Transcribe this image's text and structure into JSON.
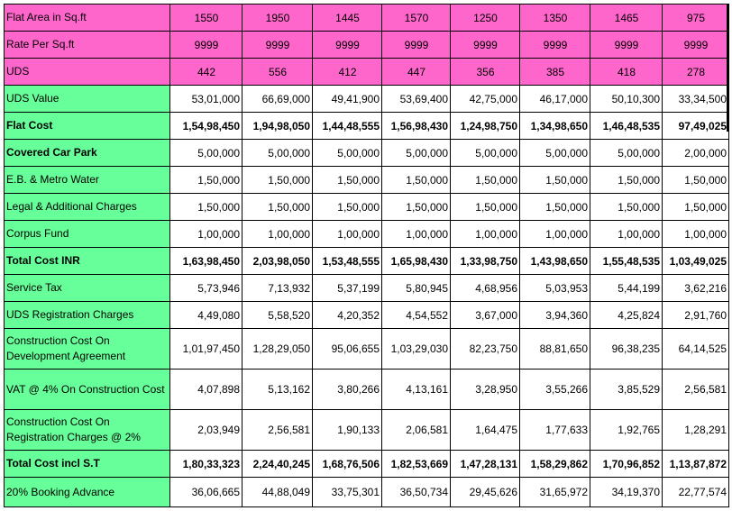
{
  "columns_count": 8,
  "rows": [
    {
      "label": "Flat Area in Sq.ft",
      "values": [
        "1550",
        "1950",
        "1445",
        "1570",
        "1250",
        "1350",
        "1465",
        "975"
      ],
      "style": "pink"
    },
    {
      "label": "Rate Per Sq.ft",
      "values": [
        "9999",
        "9999",
        "9999",
        "9999",
        "9999",
        "9999",
        "9999",
        "9999"
      ],
      "style": "pink"
    },
    {
      "label": "UDS",
      "values": [
        "442",
        "556",
        "412",
        "447",
        "356",
        "385",
        "418",
        "278"
      ],
      "style": "pink"
    },
    {
      "label": "UDS Value",
      "values": [
        "53,01,000",
        "66,69,000",
        "49,41,900",
        "53,69,400",
        "42,75,000",
        "46,17,000",
        "50,10,300",
        "33,34,500"
      ],
      "style": "green"
    },
    {
      "label": "Flat Cost",
      "values": [
        "1,54,98,450",
        "1,94,98,050",
        "1,44,48,555",
        "1,56,98,430",
        "1,24,98,750",
        "1,34,98,650",
        "1,46,48,535",
        "97,49,025"
      ],
      "style": "green",
      "bold": true
    },
    {
      "label": "Covered Car Park",
      "values": [
        "5,00,000",
        "5,00,000",
        "5,00,000",
        "5,00,000",
        "5,00,000",
        "5,00,000",
        "5,00,000",
        "2,00,000"
      ],
      "style": "green",
      "bold_label": true
    },
    {
      "label": "E.B. & Metro Water",
      "values": [
        "1,50,000",
        "1,50,000",
        "1,50,000",
        "1,50,000",
        "1,50,000",
        "1,50,000",
        "1,50,000",
        "1,50,000"
      ],
      "style": "green"
    },
    {
      "label": "Legal & Additional Charges",
      "values": [
        "1,50,000",
        "1,50,000",
        "1,50,000",
        "1,50,000",
        "1,50,000",
        "1,50,000",
        "1,50,000",
        "1,50,000"
      ],
      "style": "green"
    },
    {
      "label": "Corpus Fund",
      "values": [
        "1,00,000",
        "1,00,000",
        "1,00,000",
        "1,00,000",
        "1,00,000",
        "1,00,000",
        "1,00,000",
        "1,00,000"
      ],
      "style": "green"
    },
    {
      "label": "Total Cost INR",
      "values": [
        "1,63,98,450",
        "2,03,98,050",
        "1,53,48,555",
        "1,65,98,430",
        "1,33,98,750",
        "1,43,98,650",
        "1,55,48,535",
        "1,03,49,025"
      ],
      "style": "green",
      "bold": true
    },
    {
      "label": "Service Tax",
      "values": [
        "5,73,946",
        "7,13,932",
        "5,37,199",
        "5,80,945",
        "4,68,956",
        "5,03,953",
        "5,44,199",
        "3,62,216"
      ],
      "style": "green"
    },
    {
      "label": "UDS Registration Charges",
      "values": [
        "4,49,080",
        "5,58,520",
        "4,20,352",
        "4,54,552",
        "3,67,000",
        "3,94,360",
        "4,25,824",
        "2,91,760"
      ],
      "style": "green"
    },
    {
      "label": "Construction Cost On Development Agreement",
      "values": [
        "1,01,97,450",
        "1,28,29,050",
        "95,06,655",
        "1,03,29,030",
        "82,23,750",
        "88,81,650",
        "96,38,235",
        "64,14,525"
      ],
      "style": "green",
      "tall": true
    },
    {
      "label": "VAT @ 4% On Construction Cost",
      "values": [
        "4,07,898",
        "5,13,162",
        "3,80,266",
        "4,13,161",
        "3,28,950",
        "3,55,266",
        "3,85,529",
        "2,56,581"
      ],
      "style": "green",
      "tall": true
    },
    {
      "label": "Construction Cost On Registration Charges @ 2%",
      "values": [
        "2,03,949",
        "2,56,581",
        "1,90,133",
        "2,06,581",
        "1,64,475",
        "1,77,633",
        "1,92,765",
        "1,28,291"
      ],
      "style": "green",
      "tall": true
    },
    {
      "label": "Total Cost incl S.T",
      "values": [
        "1,80,33,323",
        "2,24,40,245",
        "1,68,76,506",
        "1,82,53,669",
        "1,47,28,131",
        "1,58,29,862",
        "1,70,96,852",
        "1,13,87,872"
      ],
      "style": "green",
      "bold": true
    },
    {
      "label": "20% Booking Advance",
      "values": [
        "36,06,665",
        "44,88,049",
        "33,75,301",
        "36,50,734",
        "29,45,626",
        "31,65,972",
        "34,19,370",
        "22,77,574"
      ],
      "style": "green",
      "tall_plain": true
    }
  ]
}
